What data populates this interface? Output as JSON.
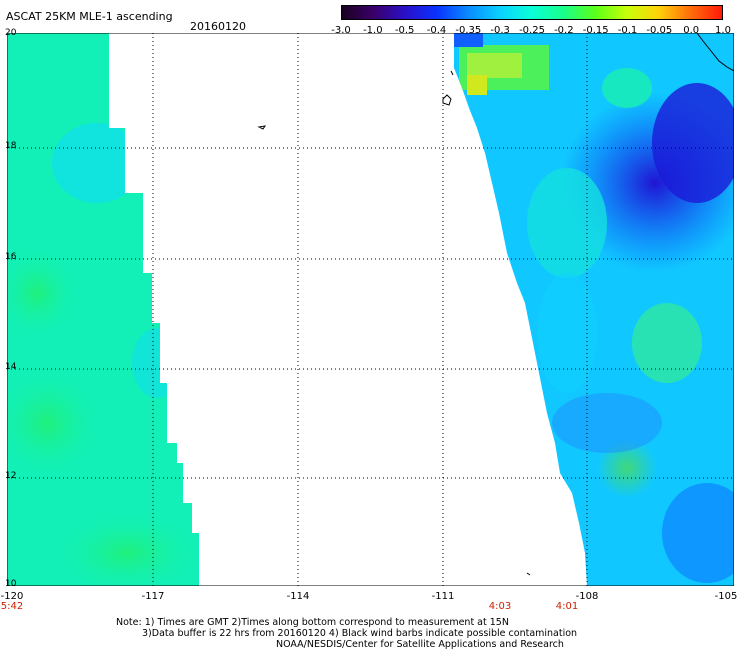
{
  "header": {
    "title": "ASCAT 25KM MLE-1 ascending",
    "date": "20160120"
  },
  "colorbar": {
    "ticks": [
      "-3.0",
      "-1.0",
      "-0.5",
      "-0.4",
      "-0.35",
      "-0.3",
      "-0.25",
      "-0.2",
      "-0.15",
      "-0.1",
      "-0.05",
      "0.0",
      "1.0"
    ],
    "colors": [
      "#1a0020",
      "#3a006a",
      "#2a10c8",
      "#0a32ff",
      "#0a8cff",
      "#0ad2ff",
      "#0affd8",
      "#1aff8a",
      "#5aff1a",
      "#c8ff0a",
      "#ffd20a",
      "#ff6e0a",
      "#ff1a0a"
    ]
  },
  "map": {
    "x_ticks": [
      "-120",
      "-117",
      "-114",
      "-111",
      "-108",
      "-105"
    ],
    "y_ticks": [
      "20",
      "18",
      "16",
      "14",
      "12",
      "10"
    ],
    "time_labels": [
      "5:42",
      "4:03",
      "4:01"
    ]
  },
  "footer": {
    "line1": "Note: 1) Times are GMT 2)Times along bottom correspond to measurement at 15N",
    "line2": "3)Data buffer is 22 hrs from 20160120 4) Black wind barbs indicate possible contamination",
    "line3": "NOAA/NESDIS/Center for Satellite Applications and Research"
  }
}
